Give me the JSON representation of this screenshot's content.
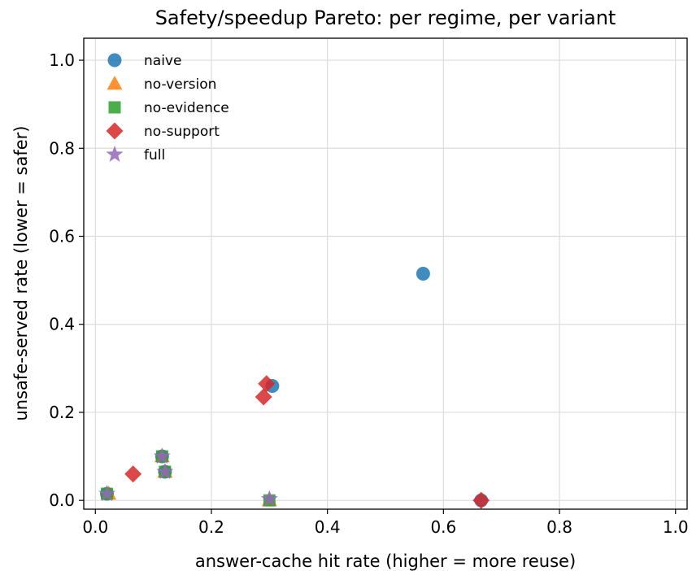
{
  "chart_data": {
    "type": "scatter",
    "title": "Safety/speedup Pareto: per regime, per variant",
    "xlabel": "answer-cache hit rate (higher = more reuse)",
    "ylabel": "unsafe-served rate (lower = safer)",
    "xlim": [
      -0.02,
      1.02
    ],
    "ylim": [
      -0.02,
      1.05
    ],
    "xticks": [
      0.0,
      0.2,
      0.4,
      0.6,
      0.8,
      1.0
    ],
    "yticks": [
      0.0,
      0.2,
      0.4,
      0.6,
      0.8,
      1.0
    ],
    "xtick_labels": [
      "0.0",
      "0.2",
      "0.4",
      "0.6",
      "0.8",
      "1.0"
    ],
    "ytick_labels": [
      "0.0",
      "0.2",
      "0.4",
      "0.6",
      "0.8",
      "1.0"
    ],
    "grid": true,
    "legend_position": "top-left",
    "series": [
      {
        "name": "naive",
        "marker": "circle",
        "color": "#1f77b4",
        "points": [
          [
            0.02,
            0.015
          ],
          [
            0.12,
            0.065
          ],
          [
            0.115,
            0.1
          ],
          [
            0.305,
            0.26
          ],
          [
            0.565,
            0.515
          ],
          [
            0.665,
            0.0
          ]
        ]
      },
      {
        "name": "no-version",
        "marker": "triangle",
        "color": "#ff7f0e",
        "points": [
          [
            0.023,
            0.015
          ],
          [
            0.12,
            0.065
          ],
          [
            0.115,
            0.1
          ],
          [
            0.3,
            0.0
          ]
        ]
      },
      {
        "name": "no-evidence",
        "marker": "square",
        "color": "#2ca02c",
        "points": [
          [
            0.02,
            0.015
          ],
          [
            0.12,
            0.065
          ],
          [
            0.115,
            0.1
          ],
          [
            0.3,
            0.0
          ]
        ]
      },
      {
        "name": "no-support",
        "marker": "diamond",
        "color": "#d62728",
        "points": [
          [
            0.065,
            0.06
          ],
          [
            0.29,
            0.235
          ],
          [
            0.295,
            0.265
          ],
          [
            0.665,
            0.0
          ]
        ]
      },
      {
        "name": "full",
        "marker": "star",
        "color": "#9467bd",
        "points": [
          [
            0.02,
            0.015
          ],
          [
            0.12,
            0.065
          ],
          [
            0.115,
            0.1
          ],
          [
            0.3,
            0.003
          ]
        ]
      }
    ]
  }
}
